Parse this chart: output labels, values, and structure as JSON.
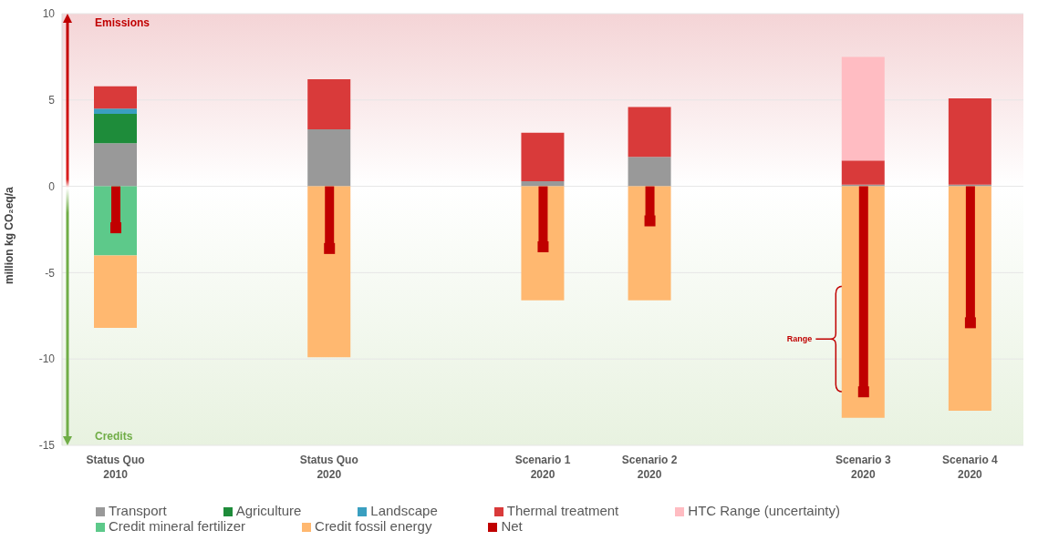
{
  "chart_data": {
    "type": "bar",
    "ylabel": "million kg CO₂eq/a",
    "stacked": true,
    "categories": [
      "Status Quo\n2010",
      null,
      "Status Quo\n2020",
      null,
      "Scenario 1\n2020",
      "Scenario 2\n2020",
      null,
      "Scenario 3\n2020",
      "Scenario 4\n2020"
    ],
    "series": [
      {
        "name": "Transport",
        "color": "#999999",
        "values": [
          2.5,
          null,
          3.3,
          null,
          0.3,
          1.7,
          null,
          0.1,
          0.1
        ]
      },
      {
        "name": "Agriculture",
        "color": "#1e8c3a",
        "values": [
          1.7,
          null,
          null,
          null,
          null,
          null,
          null,
          null,
          null
        ]
      },
      {
        "name": "Landscape",
        "color": "#3a9fc0",
        "values": [
          0.3,
          null,
          null,
          null,
          null,
          null,
          null,
          null,
          null
        ]
      },
      {
        "name": "Thermal treatment",
        "color": "#d93a3a",
        "values": [
          1.3,
          null,
          2.9,
          null,
          2.8,
          2.9,
          null,
          1.4,
          5.0
        ]
      },
      {
        "name": "HTC Range (uncertainty)",
        "color": "#ffbcc2",
        "values": [
          null,
          null,
          null,
          null,
          null,
          null,
          null,
          6.0,
          null
        ]
      },
      {
        "name": "Credit mineral fertilizer",
        "color": "#5dc98a",
        "values": [
          -4.0,
          null,
          null,
          null,
          null,
          null,
          null,
          null,
          null
        ]
      },
      {
        "name": "Credit fossil energy",
        "color": "#ffb870",
        "values": [
          -4.2,
          null,
          -9.9,
          null,
          -6.6,
          -6.6,
          null,
          -13.4,
          -13.0
        ]
      },
      {
        "name": "Net",
        "type": "lollipop",
        "color": "#c00000",
        "values": [
          -2.4,
          null,
          -3.6,
          null,
          -3.5,
          -2.0,
          null,
          -11.9,
          -7.9
        ]
      }
    ],
    "ylim": [
      -15,
      10
    ],
    "yticks": [
      -15,
      -10,
      -5,
      0,
      5,
      10
    ],
    "grid": "y",
    "legend": "bottom",
    "marker": "square",
    "annotations": [
      "Emissions",
      "Credits",
      "Range"
    ]
  }
}
